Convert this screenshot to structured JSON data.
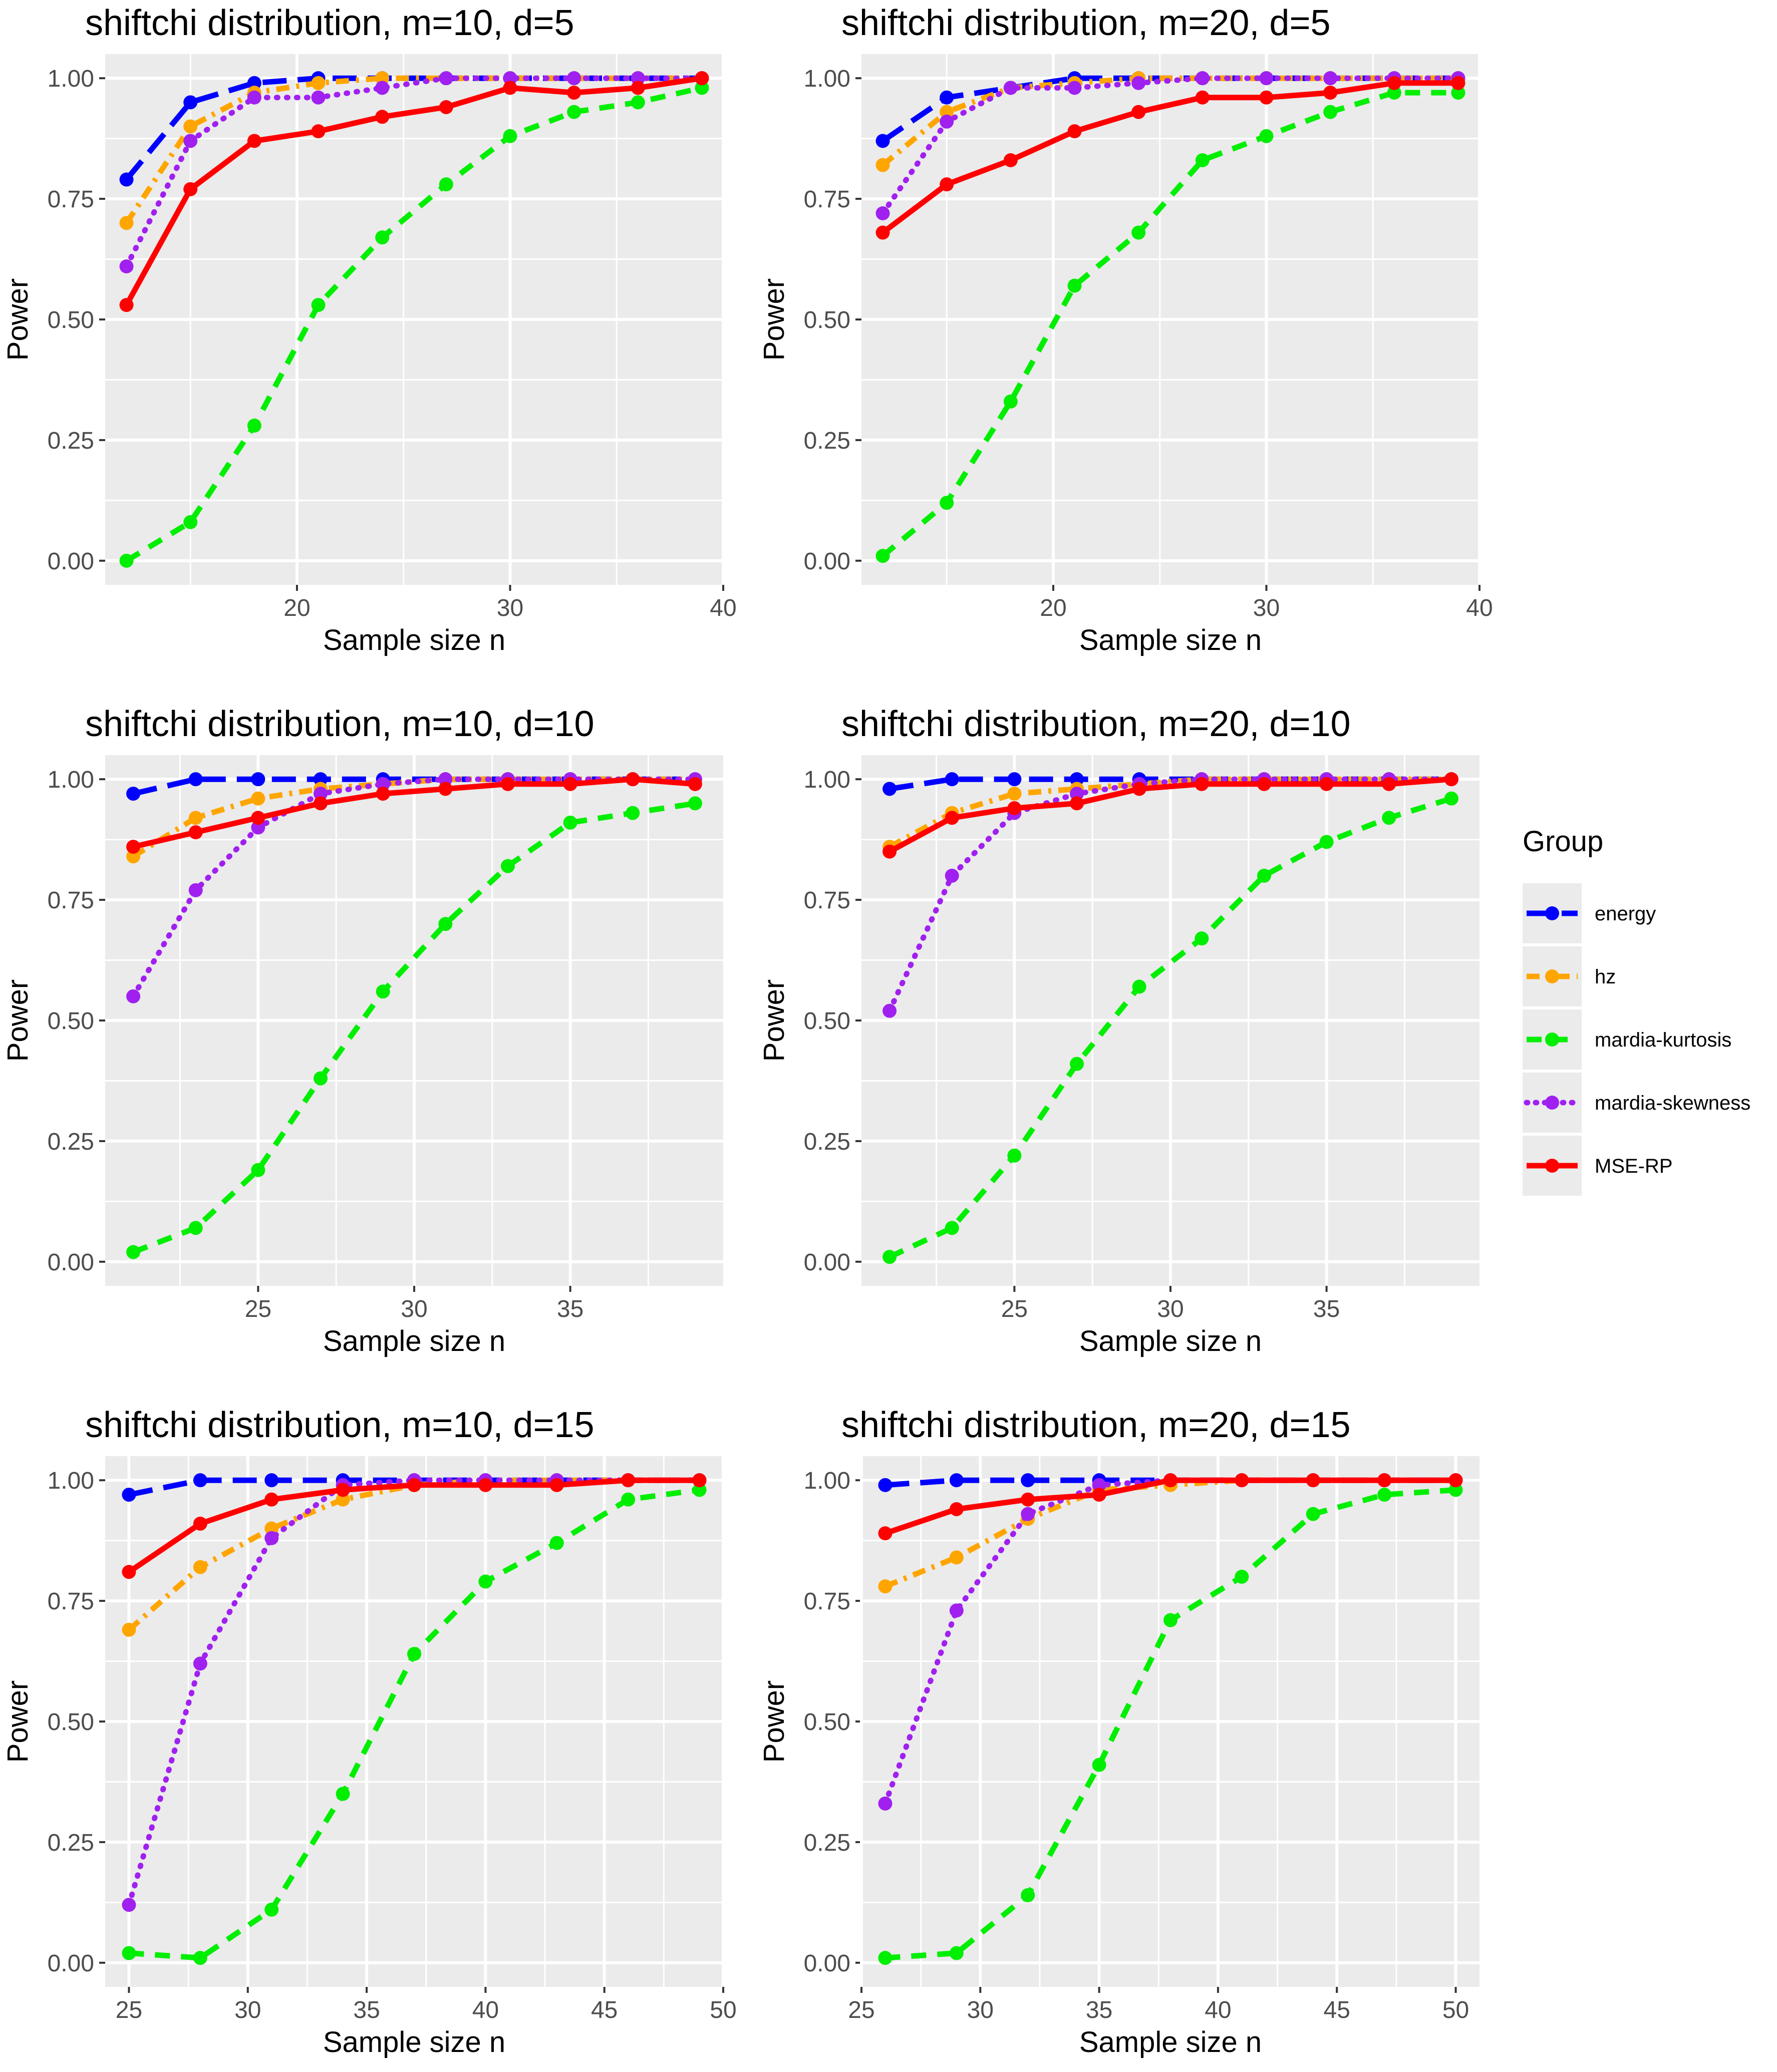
{
  "chart_data": [
    {
      "type": "line",
      "title": "shiftchi distribution, m=10, d=5",
      "xlabel": "Sample size n",
      "ylabel": "Power",
      "xlim": [
        11,
        40
      ],
      "ylim": [
        0,
        1
      ],
      "xticks": [
        20,
        30,
        40
      ],
      "x": [
        12,
        15,
        18,
        21,
        24,
        27,
        30,
        33,
        36,
        39
      ],
      "series": [
        {
          "name": "energy",
          "values": [
            0.79,
            0.95,
            0.99,
            1.0,
            1.0,
            1.0,
            1.0,
            1.0,
            1.0,
            1.0
          ]
        },
        {
          "name": "hz",
          "values": [
            0.7,
            0.9,
            0.97,
            0.99,
            1.0,
            1.0,
            1.0,
            1.0,
            1.0,
            1.0
          ]
        },
        {
          "name": "mardia-kurtosis",
          "values": [
            0.0,
            0.08,
            0.28,
            0.53,
            0.67,
            0.78,
            0.88,
            0.93,
            0.95,
            0.98
          ]
        },
        {
          "name": "mardia-skewness",
          "values": [
            0.61,
            0.87,
            0.96,
            0.96,
            0.98,
            1.0,
            1.0,
            1.0,
            1.0,
            1.0
          ]
        },
        {
          "name": "MSE-RP",
          "values": [
            0.53,
            0.77,
            0.87,
            0.89,
            0.92,
            0.94,
            0.98,
            0.97,
            0.98,
            1.0
          ]
        }
      ]
    },
    {
      "type": "line",
      "title": "shiftchi distribution, m=20, d=5",
      "xlabel": "Sample size n",
      "ylabel": "Power",
      "xlim": [
        11,
        40
      ],
      "ylim": [
        0,
        1
      ],
      "xticks": [
        20,
        30,
        40
      ],
      "x": [
        12,
        15,
        18,
        21,
        24,
        27,
        30,
        33,
        36,
        39
      ],
      "series": [
        {
          "name": "energy",
          "values": [
            0.87,
            0.96,
            0.98,
            1.0,
            1.0,
            1.0,
            1.0,
            1.0,
            1.0,
            1.0
          ]
        },
        {
          "name": "hz",
          "values": [
            0.82,
            0.93,
            0.98,
            0.99,
            1.0,
            1.0,
            1.0,
            1.0,
            1.0,
            1.0
          ]
        },
        {
          "name": "mardia-kurtosis",
          "values": [
            0.01,
            0.12,
            0.33,
            0.57,
            0.68,
            0.83,
            0.88,
            0.93,
            0.97,
            0.97
          ]
        },
        {
          "name": "mardia-skewness",
          "values": [
            0.72,
            0.91,
            0.98,
            0.98,
            0.99,
            1.0,
            1.0,
            1.0,
            1.0,
            1.0
          ]
        },
        {
          "name": "MSE-RP",
          "values": [
            0.68,
            0.78,
            0.83,
            0.89,
            0.93,
            0.96,
            0.96,
            0.97,
            0.99,
            0.99
          ]
        }
      ]
    },
    {
      "type": "line",
      "title": "shiftchi distribution, m=10, d=10",
      "xlabel": "Sample size n",
      "ylabel": "Power",
      "xlim": [
        20.1,
        39.9
      ],
      "ylim": [
        0,
        1
      ],
      "xticks": [
        25,
        30,
        35
      ],
      "x": [
        21,
        23,
        25,
        27,
        29,
        31,
        33,
        35,
        37,
        39
      ],
      "series": [
        {
          "name": "energy",
          "values": [
            0.97,
            1.0,
            1.0,
            1.0,
            1.0,
            1.0,
            1.0,
            1.0,
            1.0,
            1.0
          ]
        },
        {
          "name": "hz",
          "values": [
            0.84,
            0.92,
            0.96,
            0.98,
            0.99,
            1.0,
            1.0,
            1.0,
            1.0,
            1.0
          ]
        },
        {
          "name": "mardia-kurtosis",
          "values": [
            0.02,
            0.07,
            0.19,
            0.38,
            0.56,
            0.7,
            0.82,
            0.91,
            0.93,
            0.95
          ]
        },
        {
          "name": "mardia-skewness",
          "values": [
            0.55,
            0.77,
            0.9,
            0.97,
            0.99,
            1.0,
            1.0,
            1.0,
            1.0,
            1.0
          ]
        },
        {
          "name": "MSE-RP",
          "values": [
            0.86,
            0.89,
            0.92,
            0.95,
            0.97,
            0.98,
            0.99,
            0.99,
            1.0,
            0.99
          ]
        }
      ]
    },
    {
      "type": "line",
      "title": "shiftchi distribution, m=20, d=10",
      "xlabel": "Sample size n",
      "ylabel": "Power",
      "xlim": [
        20.1,
        39.9
      ],
      "ylim": [
        0,
        1
      ],
      "xticks": [
        25,
        30,
        35
      ],
      "x": [
        21,
        23,
        25,
        27,
        29,
        31,
        33,
        35,
        37,
        39
      ],
      "series": [
        {
          "name": "energy",
          "values": [
            0.98,
            1.0,
            1.0,
            1.0,
            1.0,
            1.0,
            1.0,
            1.0,
            1.0,
            1.0
          ]
        },
        {
          "name": "hz",
          "values": [
            0.86,
            0.93,
            0.97,
            0.98,
            0.99,
            1.0,
            1.0,
            1.0,
            1.0,
            1.0
          ]
        },
        {
          "name": "mardia-kurtosis",
          "values": [
            0.01,
            0.07,
            0.22,
            0.41,
            0.57,
            0.67,
            0.8,
            0.87,
            0.92,
            0.96
          ]
        },
        {
          "name": "mardia-skewness",
          "values": [
            0.52,
            0.8,
            0.93,
            0.97,
            0.99,
            1.0,
            1.0,
            1.0,
            1.0,
            1.0
          ]
        },
        {
          "name": "MSE-RP",
          "values": [
            0.85,
            0.92,
            0.94,
            0.95,
            0.98,
            0.99,
            0.99,
            0.99,
            0.99,
            1.0
          ]
        }
      ]
    },
    {
      "type": "line",
      "title": "shiftchi distribution, m=10, d=15",
      "xlabel": "Sample size n",
      "ylabel": "Power",
      "xlim": [
        24,
        50
      ],
      "ylim": [
        0,
        1
      ],
      "xticks": [
        25,
        30,
        35,
        40,
        45,
        50
      ],
      "x": [
        25,
        28,
        31,
        34,
        37,
        40,
        43,
        46,
        49
      ],
      "series": [
        {
          "name": "energy",
          "values": [
            0.97,
            1.0,
            1.0,
            1.0,
            1.0,
            1.0,
            1.0,
            1.0,
            1.0
          ]
        },
        {
          "name": "hz",
          "values": [
            0.69,
            0.82,
            0.9,
            0.96,
            0.99,
            1.0,
            1.0,
            1.0,
            1.0
          ]
        },
        {
          "name": "mardia-kurtosis",
          "values": [
            0.02,
            0.01,
            0.11,
            0.35,
            0.64,
            0.79,
            0.87,
            0.96,
            0.98
          ]
        },
        {
          "name": "mardia-skewness",
          "values": [
            0.12,
            0.62,
            0.88,
            0.99,
            1.0,
            1.0,
            1.0,
            1.0,
            1.0
          ]
        },
        {
          "name": "MSE-RP",
          "values": [
            0.81,
            0.91,
            0.96,
            0.98,
            0.99,
            0.99,
            0.99,
            1.0,
            1.0
          ]
        }
      ]
    },
    {
      "type": "line",
      "title": "shiftchi distribution, m=20, d=15",
      "xlabel": "Sample size n",
      "ylabel": "Power",
      "xlim": [
        25,
        51
      ],
      "ylim": [
        0,
        1
      ],
      "xticks": [
        25,
        30,
        35,
        40,
        45,
        50
      ],
      "x": [
        26,
        29,
        32,
        35,
        38,
        41,
        44,
        47,
        50
      ],
      "series": [
        {
          "name": "energy",
          "values": [
            0.99,
            1.0,
            1.0,
            1.0,
            1.0,
            1.0,
            1.0,
            1.0,
            1.0
          ]
        },
        {
          "name": "hz",
          "values": [
            0.78,
            0.84,
            0.92,
            0.98,
            0.99,
            1.0,
            1.0,
            1.0,
            1.0
          ]
        },
        {
          "name": "mardia-kurtosis",
          "values": [
            0.01,
            0.02,
            0.14,
            0.41,
            0.71,
            0.8,
            0.93,
            0.97,
            0.98
          ]
        },
        {
          "name": "mardia-skewness",
          "values": [
            0.33,
            0.73,
            0.93,
            0.99,
            1.0,
            1.0,
            1.0,
            1.0,
            1.0
          ]
        },
        {
          "name": "MSE-RP",
          "values": [
            0.89,
            0.94,
            0.96,
            0.97,
            1.0,
            1.0,
            1.0,
            1.0,
            1.0
          ]
        }
      ]
    }
  ],
  "yticks": [
    "0.00",
    "0.25",
    "0.50",
    "0.75",
    "1.00"
  ],
  "legend": {
    "title": "Group",
    "placement": "right",
    "entries": [
      {
        "name": "energy",
        "color": "#0000ff",
        "dash": "long-dash"
      },
      {
        "name": "hz",
        "color": "#ffa500",
        "dash": "dot-dash"
      },
      {
        "name": "mardia-kurtosis",
        "color": "#00ee00",
        "dash": "dashed"
      },
      {
        "name": "mardia-skewness",
        "color": "#a020f0",
        "dash": "dotted"
      },
      {
        "name": "MSE-RP",
        "color": "#ff0000",
        "dash": "solid"
      }
    ]
  },
  "colors": {
    "panel_bg": "#ebebeb",
    "grid": "#ffffff",
    "tick_text": "#4d4d4d"
  }
}
